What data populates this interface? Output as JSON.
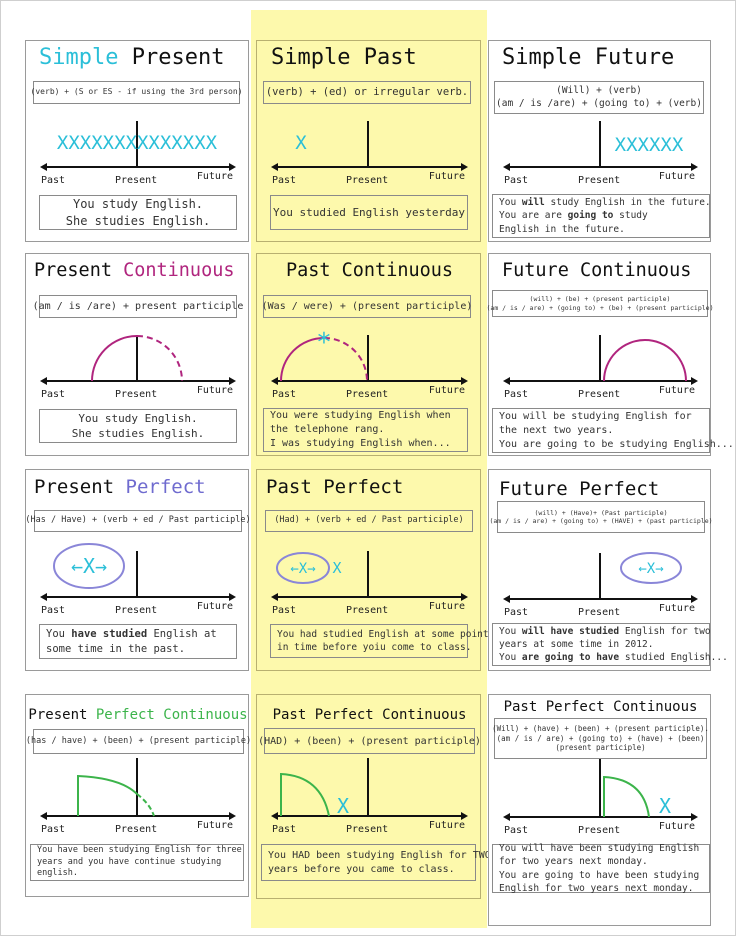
{
  "colors": {
    "cyan": "#2bbfd8",
    "magenta": "#b0257e",
    "purple": "#6f6bcf",
    "green": "#3cb44b",
    "yellow_column": "#fdf9ac"
  },
  "timeline_labels": {
    "past": "Past",
    "present": "Present",
    "future": "Future"
  },
  "cards": [
    {
      "title": [
        {
          "t": "Simple ",
          "c": "#2bbfd8"
        },
        {
          "t": "Present"
        }
      ],
      "formula": [
        "(verb) + (S or ES - if using the 3rd person)"
      ],
      "marker": "XXXXXXXXXXXXXX",
      "example": [
        [
          {
            "t": "You study English."
          }
        ],
        [
          {
            "t": "She studies English."
          }
        ]
      ]
    },
    {
      "title": [
        {
          "t": "Simple Past"
        }
      ],
      "formula": [
        "(verb) + (ed) or irregular verb."
      ],
      "marker": "X",
      "example": [
        [
          {
            "t": "You studied English yesterday"
          }
        ]
      ]
    },
    {
      "title": [
        {
          "t": "Simple Future"
        }
      ],
      "formula": [
        "(Will) + (verb)",
        "(am / is /are) + (going to) + (verb)"
      ],
      "marker": "XXXXXX",
      "example": [
        [
          {
            "t": "You "
          },
          {
            "t": "will",
            "b": true
          },
          {
            "t": " study English in the future."
          }
        ],
        [
          {
            "t": "You are are "
          },
          {
            "t": "going to",
            "b": true
          },
          {
            "t": " study"
          }
        ],
        [
          {
            "t": "English in the future."
          }
        ]
      ]
    },
    {
      "title": [
        {
          "t": "Present "
        },
        {
          "t": "Continuous",
          "c": "#b0257e"
        }
      ],
      "formula": [
        "(am / is /are) + present participle"
      ],
      "example": [
        [
          {
            "t": "You study English."
          }
        ],
        [
          {
            "t": "She studies English."
          }
        ]
      ]
    },
    {
      "title": [
        {
          "t": "Past Continuous"
        }
      ],
      "formula": [
        "(Was / were) + (present participle)"
      ],
      "marker": "*",
      "example": [
        [
          {
            "t": "You were studying English when"
          }
        ],
        [
          {
            "t": "the telephone rang."
          }
        ],
        [
          {
            "t": "I was studying English when..."
          }
        ]
      ]
    },
    {
      "title": [
        {
          "t": "Future Continuous"
        }
      ],
      "formula": [
        "(will) + (be) + (present participle)",
        "(am / is / are) + (going to) + (be) + (present participle)"
      ],
      "example": [
        [
          {
            "t": "You will be studying English for"
          }
        ],
        [
          {
            "t": "the next two years."
          }
        ],
        [
          {
            "t": "You are going to be studying English..."
          }
        ]
      ]
    },
    {
      "title": [
        {
          "t": "Present "
        },
        {
          "t": "Perfect",
          "c": "#6f6bcf"
        }
      ],
      "formula": [
        "(Has / Have) + (verb + ed / Past participle)"
      ],
      "marker": "←X→",
      "example": [
        [
          {
            "t": "You "
          },
          {
            "t": "have studied",
            "b": true
          },
          {
            "t": " English at"
          }
        ],
        [
          {
            "t": "some time in the past."
          }
        ]
      ]
    },
    {
      "title": [
        {
          "t": "Past Perfect"
        }
      ],
      "formula": [
        "(Had) + (verb + ed / Past participle)"
      ],
      "marker": "←X→",
      "marker2": "X",
      "example": [
        [
          {
            "t": "You had studied English at some point"
          }
        ],
        [
          {
            "t": "in time before yoiu come to class."
          }
        ]
      ]
    },
    {
      "title": [
        {
          "t": "Future Perfect"
        }
      ],
      "formula": [
        "(will) + (Have)+ (Past participle)",
        "(am / is / are) + (going to) + (HAVE) + (past participle)"
      ],
      "marker": "←X→",
      "example": [
        [
          {
            "t": "You "
          },
          {
            "t": "will have studied",
            "b": true
          },
          {
            "t": " English for two"
          }
        ],
        [
          {
            "t": "years at some time in 2012."
          }
        ],
        [
          {
            "t": "You "
          },
          {
            "t": "are going to have",
            "b": true
          },
          {
            "t": " studied English..."
          }
        ]
      ]
    },
    {
      "title": [
        {
          "t": "Present "
        },
        {
          "t": "Perfect Continuous",
          "c": "#3cb44b"
        }
      ],
      "formula": [
        "(has / have) + (been) + (present participle)"
      ],
      "example": [
        [
          {
            "t": "You have been studying English for three"
          }
        ],
        [
          {
            "t": "years and you have continue studying"
          }
        ],
        [
          {
            "t": "english."
          }
        ]
      ]
    },
    {
      "title": [
        {
          "t": "Past Perfect Continuous"
        }
      ],
      "formula": [
        "(HAD) + (been) + (present participle)"
      ],
      "marker": "X",
      "example": [
        [
          {
            "t": "You HAD been studying English for TWO"
          }
        ],
        [
          {
            "t": "years before you came to class."
          }
        ]
      ]
    },
    {
      "title": [
        {
          "t": "Past Perfect Continuous"
        }
      ],
      "formula": [
        "(Will) + (have) + (been) + (present participle).",
        "(am / is / are) + (going to) + (have) + (been)",
        "(present participle)"
      ],
      "marker": "X",
      "example": [
        [
          {
            "t": "You will have been studying English"
          }
        ],
        [
          {
            "t": "for two years next monday."
          }
        ],
        [
          {
            "t": "You are going to have been studying"
          }
        ],
        [
          {
            "t": "English for two years next monday."
          }
        ]
      ]
    }
  ]
}
